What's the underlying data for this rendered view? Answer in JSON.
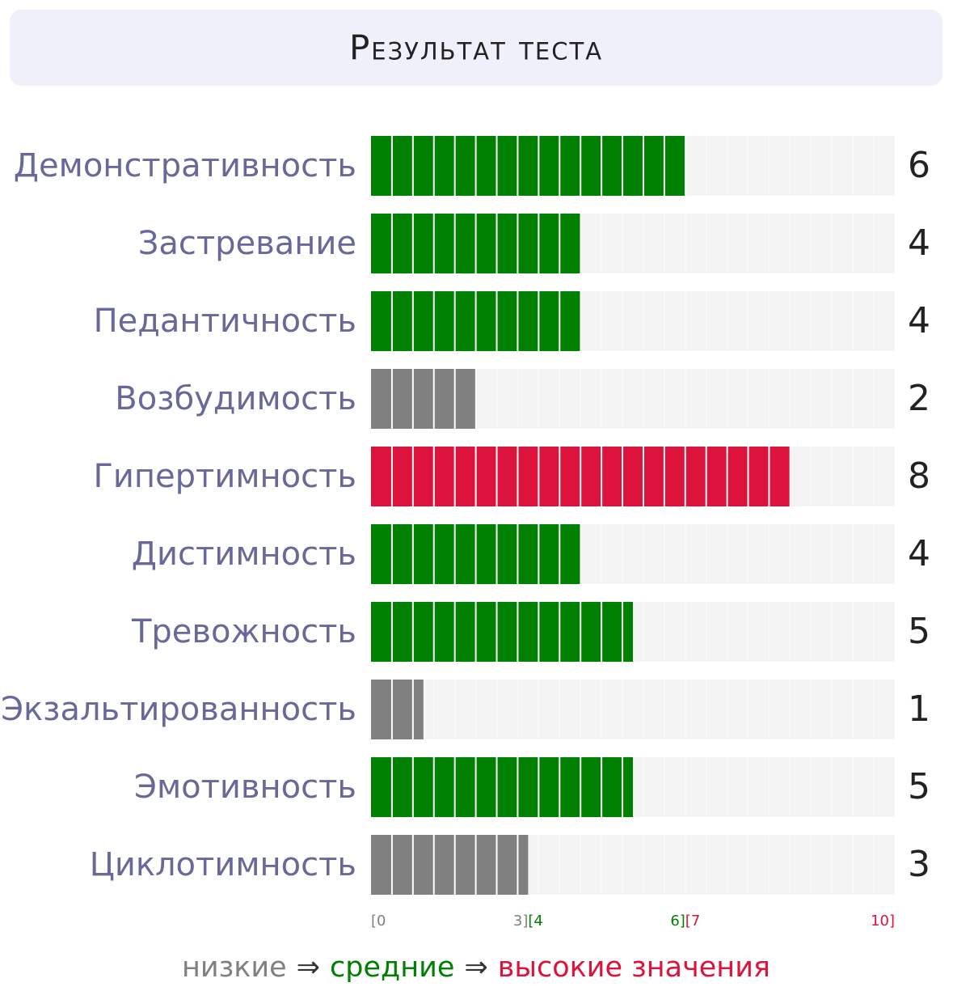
{
  "chart_data": {
    "type": "bar",
    "orientation": "horizontal",
    "title": "Результат теста",
    "categories": [
      "Демонстративность",
      "Застревание",
      "Педантичность",
      "Возбудимость",
      "Гипертимность",
      "Дистимность",
      "Тревожность",
      "Экзальтированность",
      "Эмотивность",
      "Циклотимность"
    ],
    "values": [
      6,
      4,
      4,
      2,
      8,
      4,
      5,
      1,
      5,
      3
    ],
    "xlim": [
      0,
      10
    ],
    "zones": [
      {
        "range": [
          0,
          3
        ],
        "labels": [
          "[0",
          "3]"
        ],
        "color": "#808080",
        "name": "низкие"
      },
      {
        "range": [
          3,
          6
        ],
        "labels": [
          "[4",
          "6]"
        ],
        "color": "#008000",
        "name": "средние"
      },
      {
        "range": [
          6,
          10
        ],
        "labels": [
          "[7",
          "10]"
        ],
        "color": "#dc143c",
        "name": "высокие значения"
      }
    ],
    "legend_separator": "⇒"
  }
}
